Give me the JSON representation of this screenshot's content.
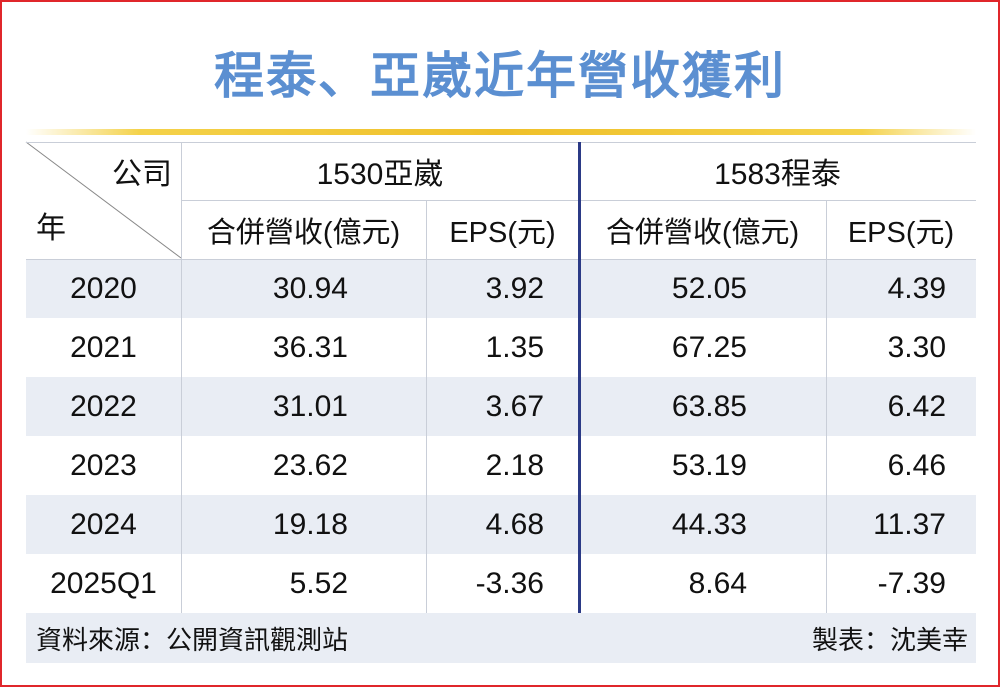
{
  "title": "程泰、亞崴近年營收獲利",
  "table": {
    "corner": {
      "column_label": "公司",
      "row_label": "年"
    },
    "groups": [
      "1530亞崴",
      "1583程泰"
    ],
    "columns": [
      "合併營收(億元)",
      "EPS(元)",
      "合併營收(億元)",
      "EPS(元)"
    ],
    "rows": [
      [
        "2020",
        "30.94",
        "3.92",
        "52.05",
        "4.39"
      ],
      [
        "2021",
        "36.31",
        "1.35",
        "67.25",
        "3.30"
      ],
      [
        "2022",
        "31.01",
        "3.67",
        "63.85",
        "6.42"
      ],
      [
        "2023",
        "23.62",
        "2.18",
        "53.19",
        "6.46"
      ],
      [
        "2024",
        "19.18",
        "4.68",
        "44.33",
        "11.37"
      ],
      [
        "2025Q1",
        "5.52",
        "-3.36",
        "8.64",
        "-7.39"
      ]
    ]
  },
  "footer": {
    "source": "資料來源：公開資訊觀測站",
    "author": "製表：沈美幸"
  }
}
